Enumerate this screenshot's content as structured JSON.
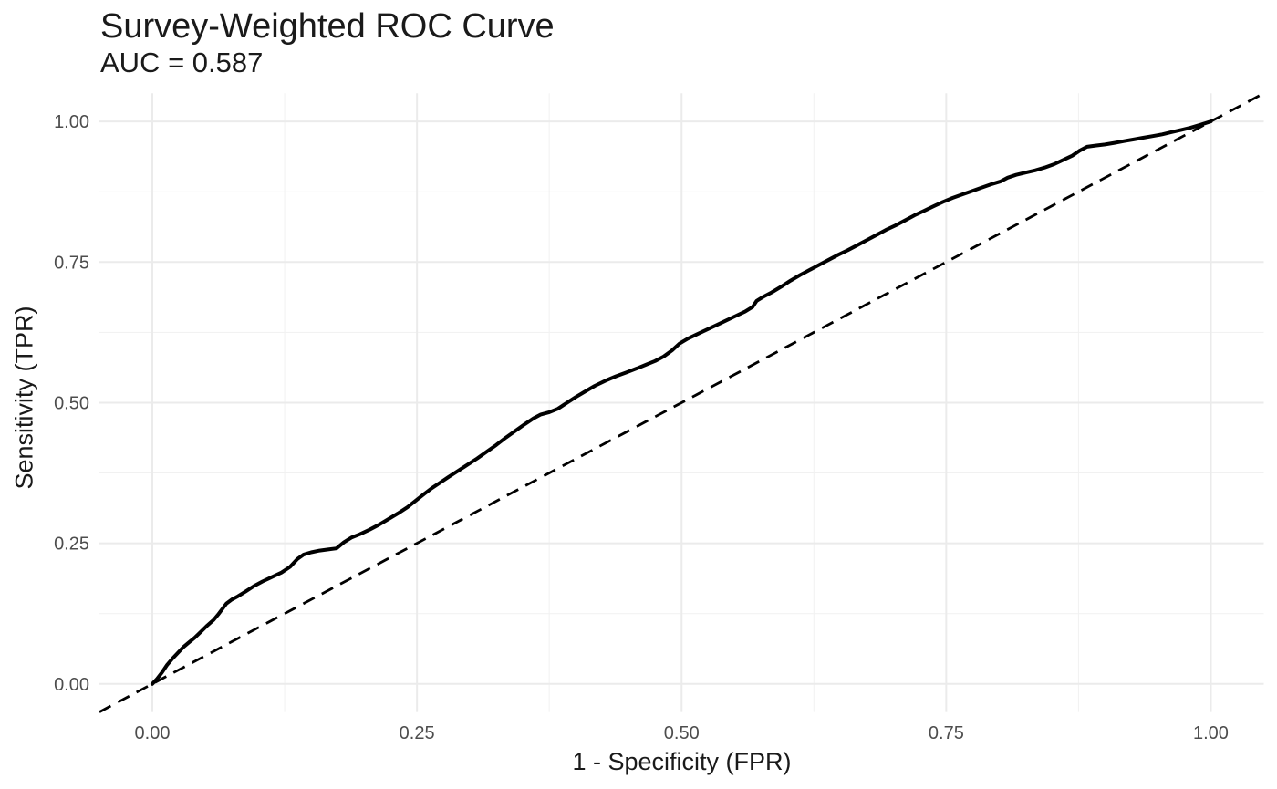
{
  "chart": {
    "title": "Survey-Weighted ROC Curve",
    "subtitle": "AUC = 0.587",
    "auc_value": "0.587"
  },
  "chart_data": {
    "type": "line",
    "title": "Survey-Weighted ROC Curve",
    "subtitle": "AUC = 0.587",
    "xlabel": "1 - Specificity (FPR)",
    "ylabel": "Sensitivity (TPR)",
    "xlim": [
      -0.05,
      1.05
    ],
    "ylim": [
      -0.05,
      1.05
    ],
    "grid": true,
    "legend": "none",
    "x_ticks": [
      {
        "value": 0.0,
        "label": "0.00"
      },
      {
        "value": 0.25,
        "label": "0.25"
      },
      {
        "value": 0.5,
        "label": "0.50"
      },
      {
        "value": 0.75,
        "label": "0.75"
      },
      {
        "value": 1.0,
        "label": "1.00"
      }
    ],
    "y_ticks": [
      {
        "value": 0.0,
        "label": "0.00"
      },
      {
        "value": 0.25,
        "label": "0.25"
      },
      {
        "value": 0.5,
        "label": "0.50"
      },
      {
        "value": 0.75,
        "label": "0.75"
      },
      {
        "value": 1.0,
        "label": "1.00"
      }
    ],
    "minor_ticks": [
      0.125,
      0.375,
      0.625,
      0.875
    ],
    "colors": {
      "curve": "#000000",
      "diagonal": "#000000",
      "grid_major": "#EBEBEB",
      "grid_minor": "#F1F1F1",
      "tick_label": "#4D4D4D",
      "text": "#1A1A1A",
      "background": "#FFFFFF"
    },
    "series": [
      {
        "name": "ROC curve",
        "style": "solid",
        "stroke_width": 4,
        "points": [
          [
            0.0,
            0.0
          ],
          [
            0.004,
            0.008
          ],
          [
            0.009,
            0.02
          ],
          [
            0.014,
            0.034
          ],
          [
            0.019,
            0.045
          ],
          [
            0.024,
            0.055
          ],
          [
            0.029,
            0.065
          ],
          [
            0.034,
            0.073
          ],
          [
            0.04,
            0.082
          ],
          [
            0.046,
            0.093
          ],
          [
            0.052,
            0.104
          ],
          [
            0.058,
            0.114
          ],
          [
            0.062,
            0.123
          ],
          [
            0.066,
            0.133
          ],
          [
            0.07,
            0.143
          ],
          [
            0.075,
            0.15
          ],
          [
            0.081,
            0.156
          ],
          [
            0.088,
            0.164
          ],
          [
            0.096,
            0.174
          ],
          [
            0.104,
            0.182
          ],
          [
            0.113,
            0.19
          ],
          [
            0.122,
            0.198
          ],
          [
            0.13,
            0.208
          ],
          [
            0.137,
            0.222
          ],
          [
            0.143,
            0.23
          ],
          [
            0.15,
            0.234
          ],
          [
            0.158,
            0.237
          ],
          [
            0.166,
            0.239
          ],
          [
            0.174,
            0.241
          ],
          [
            0.181,
            0.252
          ],
          [
            0.188,
            0.26
          ],
          [
            0.196,
            0.266
          ],
          [
            0.205,
            0.274
          ],
          [
            0.214,
            0.283
          ],
          [
            0.223,
            0.293
          ],
          [
            0.232,
            0.303
          ],
          [
            0.241,
            0.314
          ],
          [
            0.249,
            0.326
          ],
          [
            0.257,
            0.338
          ],
          [
            0.264,
            0.348
          ],
          [
            0.272,
            0.358
          ],
          [
            0.28,
            0.368
          ],
          [
            0.289,
            0.379
          ],
          [
            0.298,
            0.39
          ],
          [
            0.307,
            0.401
          ],
          [
            0.316,
            0.413
          ],
          [
            0.325,
            0.425
          ],
          [
            0.334,
            0.438
          ],
          [
            0.343,
            0.45
          ],
          [
            0.352,
            0.462
          ],
          [
            0.36,
            0.472
          ],
          [
            0.367,
            0.479
          ],
          [
            0.375,
            0.483
          ],
          [
            0.383,
            0.489
          ],
          [
            0.391,
            0.499
          ],
          [
            0.4,
            0.51
          ],
          [
            0.409,
            0.52
          ],
          [
            0.418,
            0.53
          ],
          [
            0.428,
            0.539
          ],
          [
            0.438,
            0.547
          ],
          [
            0.448,
            0.554
          ],
          [
            0.458,
            0.561
          ],
          [
            0.467,
            0.568
          ],
          [
            0.475,
            0.574
          ],
          [
            0.483,
            0.582
          ],
          [
            0.491,
            0.593
          ],
          [
            0.498,
            0.605
          ],
          [
            0.506,
            0.614
          ],
          [
            0.515,
            0.622
          ],
          [
            0.524,
            0.63
          ],
          [
            0.533,
            0.638
          ],
          [
            0.542,
            0.646
          ],
          [
            0.551,
            0.654
          ],
          [
            0.56,
            0.662
          ],
          [
            0.567,
            0.67
          ],
          [
            0.571,
            0.681
          ],
          [
            0.577,
            0.688
          ],
          [
            0.585,
            0.696
          ],
          [
            0.594,
            0.706
          ],
          [
            0.603,
            0.717
          ],
          [
            0.612,
            0.727
          ],
          [
            0.621,
            0.736
          ],
          [
            0.63,
            0.745
          ],
          [
            0.639,
            0.754
          ],
          [
            0.648,
            0.763
          ],
          [
            0.657,
            0.771
          ],
          [
            0.666,
            0.78
          ],
          [
            0.675,
            0.789
          ],
          [
            0.684,
            0.798
          ],
          [
            0.693,
            0.807
          ],
          [
            0.702,
            0.815
          ],
          [
            0.711,
            0.824
          ],
          [
            0.72,
            0.833
          ],
          [
            0.729,
            0.841
          ],
          [
            0.738,
            0.849
          ],
          [
            0.747,
            0.857
          ],
          [
            0.756,
            0.864
          ],
          [
            0.765,
            0.87
          ],
          [
            0.774,
            0.876
          ],
          [
            0.783,
            0.882
          ],
          [
            0.792,
            0.888
          ],
          [
            0.801,
            0.893
          ],
          [
            0.808,
            0.9
          ],
          [
            0.816,
            0.905
          ],
          [
            0.825,
            0.909
          ],
          [
            0.834,
            0.913
          ],
          [
            0.843,
            0.918
          ],
          [
            0.852,
            0.924
          ],
          [
            0.861,
            0.932
          ],
          [
            0.869,
            0.939
          ],
          [
            0.876,
            0.948
          ],
          [
            0.883,
            0.955
          ],
          [
            0.891,
            0.957
          ],
          [
            0.9,
            0.959
          ],
          [
            0.909,
            0.962
          ],
          [
            0.918,
            0.965
          ],
          [
            0.927,
            0.968
          ],
          [
            0.936,
            0.971
          ],
          [
            0.945,
            0.974
          ],
          [
            0.954,
            0.977
          ],
          [
            0.963,
            0.981
          ],
          [
            0.972,
            0.985
          ],
          [
            0.981,
            0.989
          ],
          [
            0.99,
            0.994
          ],
          [
            1.0,
            1.0
          ]
        ]
      },
      {
        "name": "Chance diagonal",
        "style": "dashed",
        "stroke_width": 2.8,
        "dash": "14 9",
        "points": [
          [
            -0.05,
            -0.05
          ],
          [
            1.05,
            1.05
          ]
        ]
      }
    ]
  }
}
